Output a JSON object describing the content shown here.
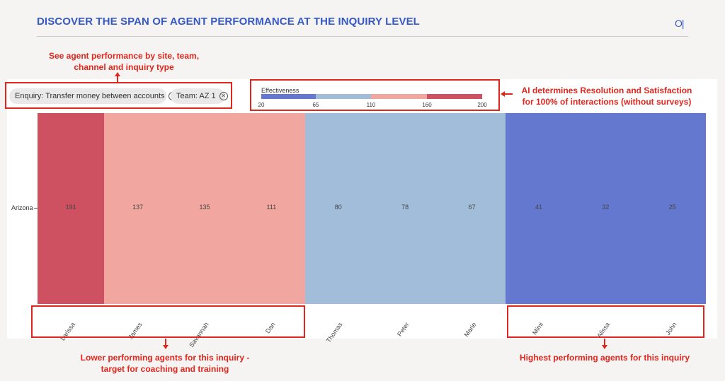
{
  "header": {
    "title": "DISCOVER THE SPAN OF AGENT PERFORMANCE AT THE INQUIRY LEVEL",
    "logo": "O|"
  },
  "filters": [
    {
      "label": "Enquiry: Transfer money between accounts",
      "remove_icon": "circle-x-icon"
    },
    {
      "label": "Team: AZ 1",
      "remove_icon": "circle-x-icon"
    }
  ],
  "legend": {
    "title": "Effectiveness",
    "ticks": [
      "20",
      "65",
      "110",
      "160",
      "200"
    ],
    "colors": [
      "#6578cf",
      "#a2bdd9",
      "#f1a7a0",
      "#cd5161"
    ]
  },
  "annotations": {
    "filters_note": "See agent performance by site, team,\nchannel and inquiry type",
    "legend_note": "AI determines Resolution and Satisfaction\nfor 100% of interactions (without surveys)",
    "low_note": "Lower performing agents for this inquiry -\ntarget for coaching and training",
    "high_note": "Highest performing agents for this inquiry"
  },
  "chart_data": {
    "type": "heatmap",
    "rows": [
      "Arizona"
    ],
    "columns": [
      "Larissa",
      "James",
      "Savannah",
      "Dan",
      "Thomas",
      "Peter",
      "Marie",
      "Mimi",
      "Alissa",
      "John"
    ],
    "values": [
      [
        191,
        137,
        135,
        111,
        80,
        78,
        67,
        41,
        32,
        25
      ]
    ],
    "colors": [
      "#cd5161",
      "#f1a7a0",
      "#f1a7a0",
      "#f1a7a0",
      "#a2bdd9",
      "#a2bdd9",
      "#a2bdd9",
      "#6578cf",
      "#6578cf",
      "#6578cf"
    ],
    "scale": {
      "min": 20,
      "max": 200,
      "label": "Effectiveness"
    }
  }
}
